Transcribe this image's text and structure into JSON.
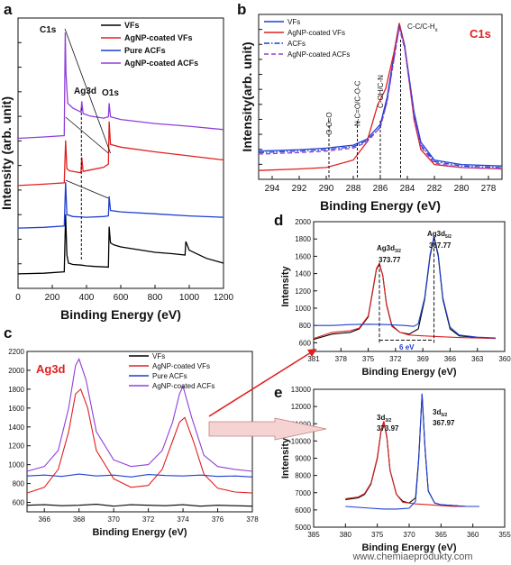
{
  "chart_data": [
    {
      "panel": "a",
      "type": "line",
      "xlabel": "Binding Energy (eV)",
      "ylabel": "Intensity (arb. unit)",
      "xlim": [
        0,
        1200
      ],
      "xticks": [
        0,
        200,
        400,
        600,
        800,
        1000,
        1200
      ],
      "annotations": [
        "C1s",
        "Ag3d",
        "O1s"
      ],
      "legend_position": "top-right",
      "series": [
        {
          "name": "VFs",
          "color": "#000000",
          "offset": 0,
          "x": [
            0,
            150,
            270,
            278,
            285,
            295,
            320,
            370,
            400,
            450,
            528,
            532,
            540,
            560,
            600,
            700,
            800,
            900,
            975,
            980,
            1000,
            1100,
            1200
          ],
          "y": [
            0.2,
            0.3,
            0.5,
            9.0,
            3.0,
            1.8,
            1.6,
            1.5,
            1.4,
            1.3,
            1.2,
            7.2,
            4.8,
            4.5,
            4.2,
            3.8,
            3.4,
            3.2,
            3.0,
            5.0,
            3.7,
            2.5,
            1.8
          ]
        },
        {
          "name": "AgNP-coated VFs",
          "color": "#e02020",
          "offset": 0,
          "x": [
            0,
            150,
            270,
            278,
            285,
            300,
            340,
            368,
            372,
            380,
            420,
            500,
            528,
            532,
            540,
            600,
            800,
            1000,
            1200
          ],
          "y": [
            13.3,
            13.5,
            13.7,
            20.0,
            15.8,
            15.5,
            15.3,
            15.2,
            17.5,
            15.4,
            15.6,
            16.0,
            16.5,
            22.8,
            19.4,
            19.0,
            18.3,
            17.7,
            17.1
          ]
        },
        {
          "name": "Pure ACFs",
          "color": "#1f3fd0",
          "offset": 0,
          "x": [
            0,
            150,
            270,
            278,
            285,
            320,
            400,
            500,
            528,
            532,
            540,
            600,
            800,
            1000,
            1200
          ],
          "y": [
            7.0,
            7.1,
            7.3,
            13.8,
            9.0,
            8.7,
            8.6,
            8.7,
            8.8,
            11.7,
            9.6,
            9.4,
            9.1,
            8.8,
            8.6
          ]
        },
        {
          "name": "AgNP-coated ACFs",
          "color": "#9040d8",
          "offset": 0,
          "x": [
            0,
            150,
            270,
            276,
            280,
            290,
            320,
            368,
            372,
            380,
            420,
            500,
            528,
            532,
            540,
            600,
            800,
            1000,
            1200
          ],
          "y": [
            20.3,
            20.5,
            20.7,
            36.0,
            30.0,
            25.5,
            24.8,
            24.2,
            25.8,
            24.0,
            23.6,
            23.3,
            23.5,
            25.5,
            23.5,
            23.1,
            22.5,
            22.1,
            21.6
          ]
        }
      ]
    },
    {
      "panel": "b",
      "type": "line",
      "xlabel": "Binding Energy (eV)",
      "ylabel": "Intensity(arb. unit)",
      "xlim": [
        295,
        277
      ],
      "xticks": [
        294,
        292,
        290,
        288,
        286,
        284,
        282,
        280,
        278
      ],
      "title": "C1s",
      "peak_labels": [
        "O-C=O",
        "N-C=O/C-O-C",
        "C-OH/C-N",
        "C-C/C-H"
      ],
      "peak_label_sub": "x",
      "peak_positions": [
        289.8,
        287.7,
        286.0,
        284.5
      ],
      "legend_position": "top-left",
      "series": [
        {
          "name": "VFs",
          "color": "#1f3fd0",
          "style": "solid",
          "x": [
            295,
            292,
            290,
            288,
            287,
            286,
            285.5,
            285,
            284.6,
            284.2,
            283.5,
            283,
            282,
            280,
            277
          ],
          "y": [
            0.14,
            0.15,
            0.16,
            0.18,
            0.22,
            0.32,
            0.5,
            0.78,
            1.0,
            0.85,
            0.4,
            0.2,
            0.08,
            0.05,
            0.04
          ]
        },
        {
          "name": "AgNP-coated VFs",
          "color": "#e02020",
          "style": "solid",
          "x": [
            295,
            292,
            290,
            288,
            287,
            286.2,
            285.6,
            285,
            284.6,
            284.2,
            283.5,
            283,
            282,
            280,
            277
          ],
          "y": [
            0.01,
            0.02,
            0.03,
            0.08,
            0.2,
            0.45,
            0.56,
            0.8,
            1.0,
            0.85,
            0.35,
            0.15,
            0.05,
            0.03,
            0.02
          ]
        },
        {
          "name": "ACFs",
          "color": "#1f3fd0",
          "style": "dashdot",
          "x": [
            295,
            292,
            290,
            288,
            287,
            286,
            285.5,
            285,
            284.6,
            284.2,
            283.5,
            283,
            282,
            280,
            277
          ],
          "y": [
            0.13,
            0.14,
            0.15,
            0.17,
            0.21,
            0.3,
            0.48,
            0.76,
            0.98,
            0.84,
            0.38,
            0.18,
            0.07,
            0.04,
            0.03
          ]
        },
        {
          "name": "AgNP-coated ACFs",
          "color": "#9040d8",
          "style": "dashed",
          "x": [
            295,
            292,
            290,
            288,
            287,
            286,
            285.5,
            285,
            284.6,
            284.2,
            283.5,
            283,
            282,
            280,
            277
          ],
          "y": [
            0.12,
            0.13,
            0.14,
            0.16,
            0.2,
            0.3,
            0.47,
            0.75,
            0.97,
            0.83,
            0.37,
            0.17,
            0.06,
            0.03,
            0.02
          ]
        }
      ]
    },
    {
      "panel": "c",
      "type": "line",
      "xlabel": "Binding Energy (eV)",
      "ylabel": "",
      "xlim": [
        365,
        378
      ],
      "ylim": [
        500,
        2200
      ],
      "xticks": [
        366,
        368,
        370,
        372,
        374,
        376,
        378
      ],
      "yticks": [
        600,
        800,
        1000,
        1200,
        1400,
        1600,
        1800,
        2000,
        2200
      ],
      "title": "Ag3d",
      "legend_position": "top-right",
      "series": [
        {
          "name": "VFs",
          "color": "#000000",
          "x": [
            365,
            366,
            367,
            368,
            369,
            370,
            371,
            372,
            373,
            374,
            375,
            376,
            377,
            378
          ],
          "y": [
            570,
            575,
            565,
            570,
            580,
            560,
            575,
            570,
            565,
            575,
            560,
            570,
            565,
            560
          ]
        },
        {
          "name": "AgNP-coated VFs",
          "color": "#e02020",
          "x": [
            365,
            366,
            366.8,
            367.4,
            367.8,
            368.1,
            368.5,
            369,
            370,
            371,
            372,
            372.8,
            373.4,
            373.8,
            374.1,
            374.6,
            375.2,
            376,
            377,
            378
          ],
          "y": [
            700,
            760,
            950,
            1350,
            1750,
            1800,
            1600,
            1150,
            850,
            760,
            780,
            950,
            1250,
            1450,
            1500,
            1250,
            900,
            750,
            710,
            700
          ]
        },
        {
          "name": "Pure ACFs",
          "color": "#1f3fd0",
          "x": [
            365,
            366,
            367,
            368,
            369,
            370,
            371,
            372,
            373,
            374,
            375,
            376,
            377,
            378
          ],
          "y": [
            880,
            890,
            875,
            900,
            880,
            890,
            870,
            895,
            885,
            880,
            890,
            875,
            880,
            870
          ]
        },
        {
          "name": "AgNP-coated ACFs",
          "color": "#9040d8",
          "x": [
            365,
            366,
            366.8,
            367.4,
            367.8,
            368.0,
            368.4,
            369,
            370,
            371,
            372,
            372.8,
            373.4,
            373.8,
            374.0,
            374.5,
            375.2,
            376,
            377,
            378
          ],
          "y": [
            930,
            980,
            1150,
            1600,
            2050,
            2120,
            1900,
            1350,
            1050,
            980,
            1000,
            1150,
            1450,
            1750,
            1830,
            1500,
            1100,
            980,
            950,
            930
          ]
        }
      ]
    },
    {
      "panel": "d",
      "type": "line",
      "xlabel": "Binding Energy (eV)",
      "ylabel": "Intensity",
      "xlim": [
        381,
        360
      ],
      "ylim": [
        500,
        2000
      ],
      "xticks": [
        381,
        378,
        375,
        372,
        369,
        366,
        363,
        360
      ],
      "yticks": [
        600,
        800,
        1000,
        1200,
        1400,
        1600,
        1800,
        2000
      ],
      "peak_annotations": [
        {
          "base": "Ag3d",
          "sub": "3/2",
          "value": "373.77"
        },
        {
          "base": "Ag3d",
          "sub": "5/2",
          "value": "367.77"
        }
      ],
      "separation_label": "6 eV",
      "series": [
        {
          "name": "",
          "color": "#000000",
          "x": [
            381,
            379,
            377,
            376,
            375,
            374.5,
            374.1,
            373.77,
            373.4,
            373,
            372.4,
            371.5,
            370.5,
            369.5,
            368.8,
            368.2,
            367.77,
            367.3,
            366.8,
            366,
            365,
            363,
            361
          ],
          "y": [
            640,
            700,
            720,
            760,
            900,
            1200,
            1450,
            1510,
            1380,
            1050,
            800,
            720,
            700,
            760,
            1100,
            1600,
            1820,
            1600,
            1100,
            760,
            680,
            660,
            650
          ]
        },
        {
          "name": "",
          "color": "#e02020",
          "x": [
            381,
            379,
            377,
            376,
            375,
            374.5,
            374.1,
            373.77,
            373.4,
            373,
            372.4,
            371.5,
            370.5,
            369,
            367,
            365,
            363,
            361
          ],
          "y": [
            650,
            720,
            740,
            770,
            910,
            1210,
            1460,
            1520,
            1380,
            1040,
            790,
            720,
            690,
            680,
            670,
            660,
            655,
            650
          ]
        },
        {
          "name": "",
          "color": "#1f3fd0",
          "x": [
            381,
            379,
            377,
            375,
            373,
            371,
            370,
            369.5,
            368.8,
            368.2,
            367.77,
            367.3,
            366.8,
            366,
            365,
            363,
            361
          ],
          "y": [
            800,
            800,
            810,
            815,
            810,
            800,
            790,
            820,
            1120,
            1620,
            1830,
            1620,
            1120,
            780,
            690,
            665,
            655
          ]
        }
      ]
    },
    {
      "panel": "e",
      "type": "line",
      "xlabel": "Binding Energy (eV)",
      "ylabel": "Intensity",
      "xlim": [
        385,
        355
      ],
      "ylim": [
        5000,
        13000
      ],
      "xticks": [
        385,
        380,
        375,
        370,
        365,
        360,
        355
      ],
      "yticks": [
        5000,
        6000,
        7000,
        8000,
        9000,
        10000,
        11000,
        12000,
        13000
      ],
      "peak_annotations": [
        {
          "base": "3d",
          "sub": "3/2",
          "value": "373.97"
        },
        {
          "base": "3d",
          "sub": "5/2",
          "value": "367.97"
        }
      ],
      "series": [
        {
          "name": "",
          "color": "#000000",
          "x": [
            380,
            378,
            377,
            376,
            375,
            374.4,
            373.97,
            373.5,
            373,
            372,
            371,
            370,
            369,
            368.5,
            367.97,
            367.5,
            367,
            366,
            365,
            363,
            361,
            359
          ],
          "y": [
            6600,
            6700,
            6900,
            7500,
            9000,
            10600,
            11100,
            10200,
            8300,
            6900,
            6500,
            6400,
            6700,
            9000,
            12700,
            9500,
            7100,
            6400,
            6300,
            6250,
            6200,
            6200
          ]
        },
        {
          "name": "",
          "color": "#e02020",
          "x": [
            380,
            378,
            377,
            376,
            375,
            374.4,
            373.97,
            373.5,
            373,
            372,
            371,
            369,
            367,
            365,
            363,
            361,
            359
          ],
          "y": [
            6650,
            6750,
            6950,
            7550,
            9050,
            10650,
            11150,
            10250,
            8300,
            6900,
            6450,
            6350,
            6300,
            6250,
            6200,
            6200,
            6200
          ]
        },
        {
          "name": "",
          "color": "#1f3fd0",
          "x": [
            380,
            378,
            376,
            374,
            372,
            370,
            369,
            368.5,
            367.97,
            367.5,
            367,
            366,
            365,
            363,
            361,
            359
          ],
          "y": [
            6200,
            6150,
            6100,
            6050,
            6050,
            6100,
            6500,
            8900,
            12750,
            9500,
            7100,
            6400,
            6300,
            6250,
            6200,
            6200
          ]
        }
      ]
    }
  ],
  "watermark": "www.chemiaeprodukty.com"
}
